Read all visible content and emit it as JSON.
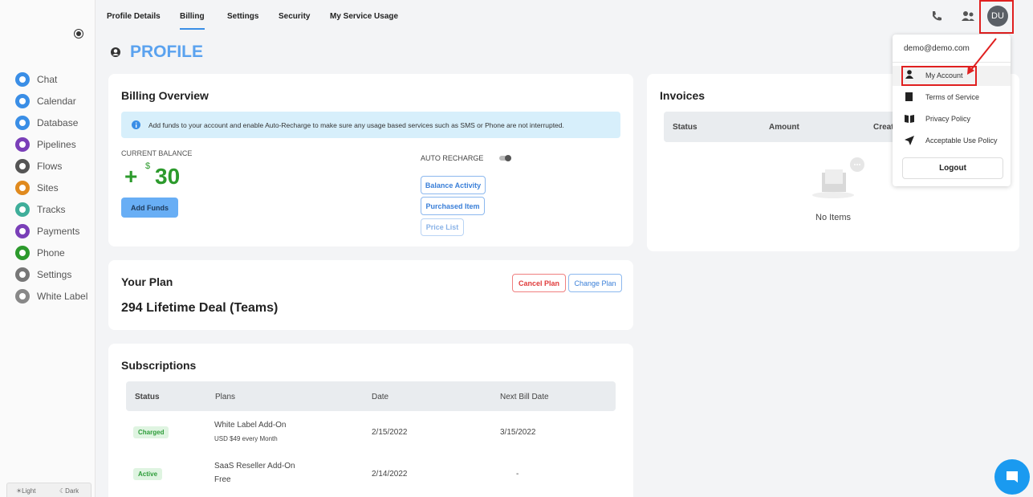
{
  "sidebar": {
    "nav": [
      "Chat",
      "Calendar",
      "Database",
      "Pipelines",
      "Flows",
      "Sites",
      "Tracks",
      "Payments",
      "Phone",
      "Settings",
      "White Label"
    ],
    "theme": [
      "☀Light",
      "☾Dark"
    ]
  },
  "tabs": [
    "Profile Details",
    "Billing",
    "Settings",
    "Security",
    "My Service Usage"
  ],
  "page_title": "PROFILE",
  "avatar": "DU",
  "dropdown": {
    "email": "demo@demo.com",
    "items": [
      "My Account",
      "Terms of Service",
      "Privacy Policy",
      "Acceptable Use Policy"
    ],
    "logout": "Logout"
  },
  "billing": {
    "title": "Billing Overview",
    "notice": "Add funds to your account and enable Auto-Recharge to make sure any usage based services such as SMS or Phone are not interrupted.",
    "balance_label": "CURRENT BALANCE",
    "sign": "+",
    "currency": "$",
    "balance": "30",
    "add_funds": "Add Funds",
    "auto_recharge": "AUTO RECHARGE",
    "links": [
      "Balance Activity",
      "Purchased Item",
      "Price List"
    ]
  },
  "invoices": {
    "title": "Invoices",
    "columns": [
      "Status",
      "Amount",
      "Created"
    ],
    "empty": "No Items"
  },
  "plan": {
    "title": "Your Plan",
    "name": "294 Lifetime Deal (Teams)",
    "buttons": [
      "Cancel Plan",
      "Change Plan"
    ]
  },
  "subscriptions": {
    "title": "Subscriptions",
    "columns": [
      "Status",
      "Plans",
      "Date",
      "Next Bill Date"
    ],
    "rows": [
      {
        "status": "Charged",
        "plan": "White Label Add-On",
        "detail": "USD $49 every Month",
        "date": "2/15/2022",
        "next": "3/15/2022"
      },
      {
        "status": "Active",
        "plan": "SaaS Reseller Add-On",
        "detail": "Free",
        "date": "2/14/2022",
        "next": "-"
      }
    ]
  }
}
